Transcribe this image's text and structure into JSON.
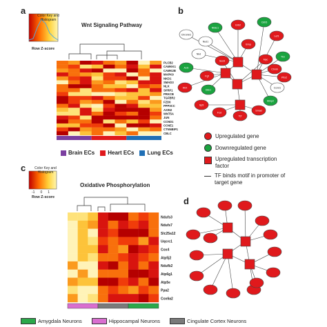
{
  "panels": {
    "a": {
      "label": "a",
      "color_key_title": "Color Key and Histogram",
      "zscore_label": "Row Z-score",
      "title": "Wnt Signaling Pathway",
      "genes": [
        "PLCB2",
        "CAMKK1",
        "CAMK2B",
        "MAPK9",
        "NKD1",
        "SMAD3",
        "NLK",
        "SFRP1",
        "PRKCB",
        "TGFBR2",
        "FZD6",
        "PPP3CC",
        "AXIN2",
        "WNT5A",
        "JUN",
        "CCND1",
        "CCNE1",
        "CTNNBIP1",
        "CBLC"
      ],
      "legend": [
        {
          "label": "Brain ECs",
          "color": "#7b3fa0"
        },
        {
          "label": "Heart ECs",
          "color": "#e0191c"
        },
        {
          "label": "Lung ECs",
          "color": "#1f6fb5"
        }
      ]
    },
    "b": {
      "label": "b",
      "node_labels": [
        "Chronin2",
        "Nud1",
        "Nfatc1",
        "Grb2",
        "Cdh5",
        "Lef1",
        "Tbx",
        "Pitx2",
        "Ccnd1",
        "Mmp2",
        "Smad",
        "Tcf",
        "Fzd",
        "Sp5",
        "Wnt",
        "Axin",
        "Dkk1",
        "Sox9",
        "Myc",
        "Fgf",
        "Nkd",
        "Ctnnb",
        "Bmp"
      ],
      "legend": [
        {
          "label": "Upregulated gene",
          "shape": "circle",
          "color": "#e0191c"
        },
        {
          "label": "Downregulated gene",
          "shape": "circle",
          "color": "#1aa33f"
        },
        {
          "label": "Upregulated transcription factor",
          "shape": "square",
          "color": "#e0191c"
        },
        {
          "label": "TF binds motif in promoter of target gene",
          "shape": "line",
          "color": "#333333"
        }
      ]
    },
    "c": {
      "label": "c",
      "color_key_title": "Color Key and Histogram",
      "zscore_label": "Row Z-score",
      "scale_ticks": [
        "-1",
        "0",
        "1"
      ],
      "title": "Oxidative Phosphorylation",
      "genes": [
        "Ndufs3",
        "Ndufs7",
        "Slc25a12",
        "Uqcrc1",
        "Cox4",
        "Atp5j2",
        "Ndufb2",
        "Atp6g1",
        "Atp5e",
        "Ppa2",
        "Cox6a2"
      ]
    },
    "d": {
      "label": "d"
    }
  },
  "bottom_legend": [
    {
      "label": "Amygdala Neurons",
      "color": "#2ba84a"
    },
    {
      "label": "Hippocampal Neurons",
      "color": "#d96fd0"
    },
    {
      "label": "Cingulate Cortex Neurons",
      "color": "#7a7a7a"
    }
  ]
}
